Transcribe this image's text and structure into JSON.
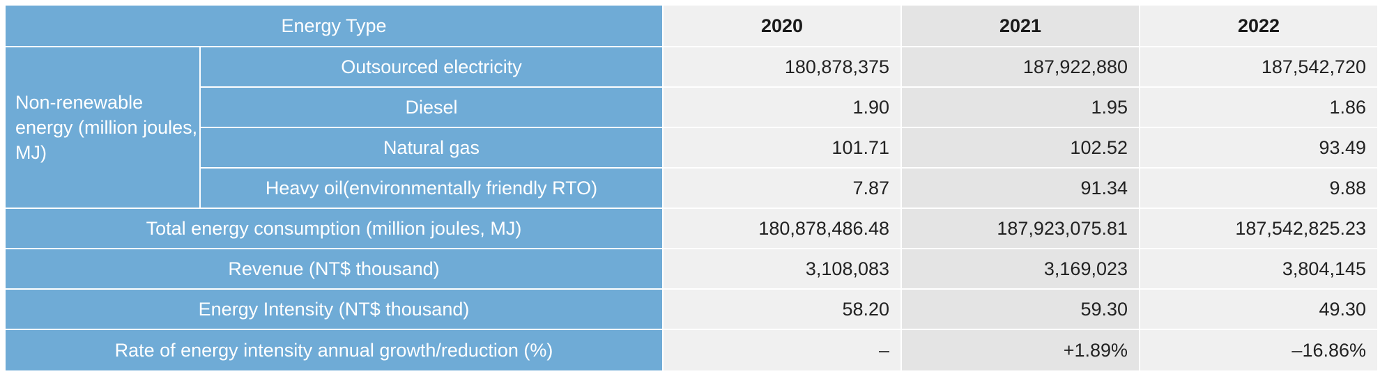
{
  "header": {
    "energy_type": "Energy Type",
    "years": [
      "2020",
      "2021",
      "2022"
    ]
  },
  "non_renewable": {
    "group_label": "Non-renewable energy (million joules, MJ)",
    "rows": [
      {
        "label": "Outsourced electricity",
        "values": [
          "180,878,375",
          "187,922,880",
          "187,542,720"
        ]
      },
      {
        "label": "Diesel",
        "values": [
          "1.90",
          "1.95",
          "1.86"
        ]
      },
      {
        "label": "Natural gas",
        "values": [
          "101.71",
          "102.52",
          "93.49"
        ]
      },
      {
        "label": "Heavy oil(environmentally friendly RTO)",
        "values": [
          "7.87",
          "91.34",
          "9.88"
        ]
      }
    ]
  },
  "summary_rows": [
    {
      "label": "Total energy consumption (million joules, MJ)",
      "values": [
        "180,878,486.48",
        "187,923,075.81",
        "187,542,825.23"
      ]
    },
    {
      "label": "Revenue (NT$ thousand)",
      "values": [
        "3,108,083",
        "3,169,023",
        "3,804,145"
      ]
    },
    {
      "label": "Energy Intensity (NT$ thousand)",
      "values": [
        "58.20",
        "59.30",
        "49.30"
      ]
    },
    {
      "label": "Rate of energy intensity annual growth/reduction (%)",
      "values": [
        "–",
        "+1.89%",
        "–16.86%"
      ]
    }
  ]
}
